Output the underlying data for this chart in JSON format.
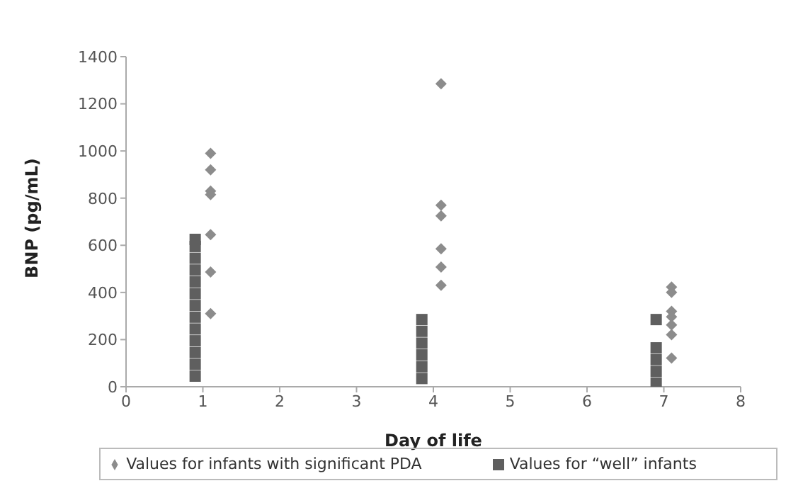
{
  "chart_data": {
    "type": "scatter",
    "xlabel": "Day of life",
    "ylabel": "BNP (pg/mL)",
    "xlim": [
      0,
      8
    ],
    "xticks": [
      0,
      1,
      2,
      3,
      4,
      5,
      6,
      7,
      8
    ],
    "ylim": [
      0,
      1400
    ],
    "yticks": [
      0,
      200,
      400,
      600,
      800,
      1000,
      1200,
      1400
    ],
    "grid": false,
    "legend": "bottom",
    "series": [
      {
        "name": "Values for infants with significant PDA",
        "color": "#8c8c8c",
        "marker": "diamond",
        "x": [
          1.1,
          1.1,
          1.1,
          1.1,
          1.1,
          1.1,
          1.1,
          4.1,
          4.1,
          4.1,
          4.1,
          4.1,
          4.1,
          7.1,
          7.1,
          7.1,
          7.1,
          7.1,
          7.1,
          7.1
        ],
        "values": [
          990,
          920,
          830,
          815,
          645,
          487,
          310,
          1285,
          770,
          725,
          585,
          508,
          430,
          423,
          400,
          320,
          297,
          262,
          221,
          122
        ]
      },
      {
        "name": "Values for “well” infants",
        "color": "#5f5f5f",
        "marker": "square",
        "x": [
          0.9,
          0.9,
          0.9,
          0.9,
          0.9,
          0.9,
          0.9,
          0.9,
          0.9,
          0.9,
          0.9,
          0.9,
          0.9,
          3.85,
          3.85,
          3.85,
          3.85,
          3.85,
          3.85,
          6.9,
          6.9,
          6.9,
          6.9,
          6.9
        ],
        "values": [
          45,
          95,
          145,
          195,
          245,
          295,
          345,
          395,
          445,
          495,
          545,
          595,
          625,
          35,
          85,
          135,
          185,
          235,
          285,
          15,
          65,
          115,
          165,
          285
        ]
      }
    ]
  }
}
